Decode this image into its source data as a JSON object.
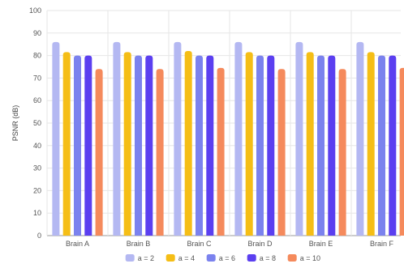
{
  "chart_data": {
    "type": "bar",
    "categories": [
      "Brain A",
      "Brain B",
      "Brain C",
      "Brain D",
      "Brain E",
      "Brain F"
    ],
    "series": [
      {
        "name": "a = 2",
        "color": "#b4b8f2",
        "values": [
          86,
          86,
          86,
          86,
          86,
          86
        ]
      },
      {
        "name": "a = 4",
        "color": "#f5be16",
        "values": [
          81.5,
          81.5,
          82,
          81.5,
          81.5,
          81.5
        ]
      },
      {
        "name": "a = 6",
        "color": "#7b82ee",
        "values": [
          80,
          80,
          80,
          80,
          80,
          80
        ]
      },
      {
        "name": "a = 8",
        "color": "#5b3ff0",
        "values": [
          80,
          80,
          80,
          80,
          80,
          80
        ]
      },
      {
        "name": "a = 10",
        "color": "#f58a5c",
        "values": [
          74,
          74,
          74.5,
          74,
          74,
          74.5
        ]
      }
    ],
    "xlabel": "",
    "ylabel": "PSNR (dB)",
    "ylim": [
      0,
      100
    ],
    "yticks": [
      0,
      10,
      20,
      30,
      40,
      50,
      60,
      70,
      80,
      90,
      100
    ],
    "grid": true,
    "legend_position": "bottom"
  }
}
